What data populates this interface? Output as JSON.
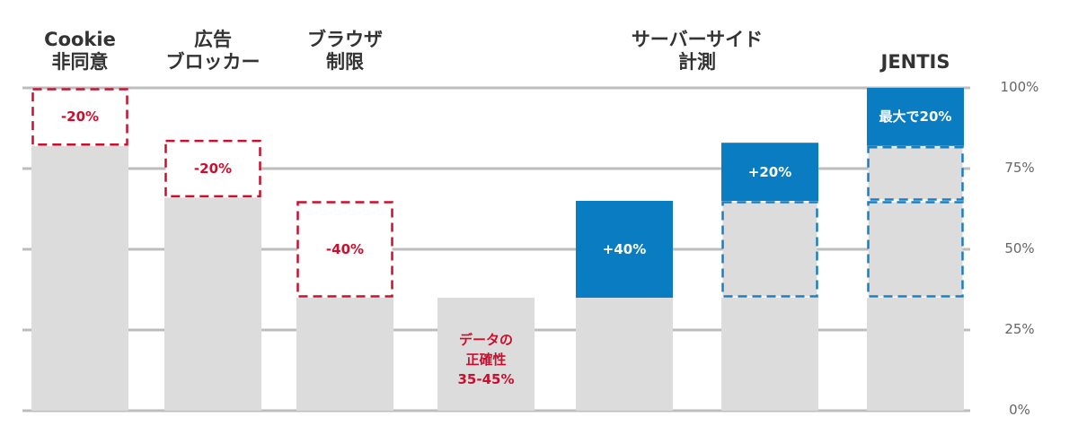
{
  "chart_data": {
    "type": "stacked-bar",
    "categories": [
      "Cookie\n非同意",
      "広告\nブロッカー",
      "ブラウザ\n制限",
      null,
      null,
      null,
      "JENTIS"
    ],
    "spanning_label": "サーバーサイド\n計測",
    "series": [
      {
        "color": "#dcdcdc",
        "values": [
          82,
          66,
          35,
          35,
          35,
          35,
          35
        ],
        "annotations": [
          null,
          null,
          null,
          "データの\n正確性\n35-45%",
          null,
          null,
          null
        ],
        "annotation_color": "#c8102e"
      },
      {
        "color": "#ffffff",
        "border": "#c8102e",
        "dashed": true,
        "values": [
          18,
          18,
          30,
          null,
          null,
          null,
          null
        ],
        "annotations": [
          "-20%",
          "-20%",
          "-40%",
          null,
          null,
          null,
          null
        ],
        "annotation_color": "#c8102e"
      },
      {
        "color": "#dcdcdc",
        "border": "#1a7fc1",
        "dashed": true,
        "values": [
          null,
          null,
          null,
          null,
          null,
          30,
          30
        ]
      },
      {
        "color": "#dcdcdc",
        "border": "#1a7fc1",
        "dashed": true,
        "values": [
          null,
          null,
          null,
          null,
          null,
          null,
          17
        ]
      },
      {
        "color": "#0a7cc1",
        "values": [
          null,
          null,
          null,
          null,
          30,
          18,
          18
        ],
        "annotations": [
          null,
          null,
          null,
          null,
          "+40%",
          "+20%",
          "最大で20%"
        ],
        "annotation_color": "#ffffff"
      }
    ],
    "ylim": [
      0,
      100
    ],
    "yticks": [
      {
        "value": 0,
        "label": "0%"
      },
      {
        "value": 25,
        "label": "25%"
      },
      {
        "value": 50,
        "label": "50%"
      },
      {
        "value": 75,
        "label": "75%"
      },
      {
        "value": 100,
        "label": "100%"
      }
    ],
    "grid": true
  }
}
